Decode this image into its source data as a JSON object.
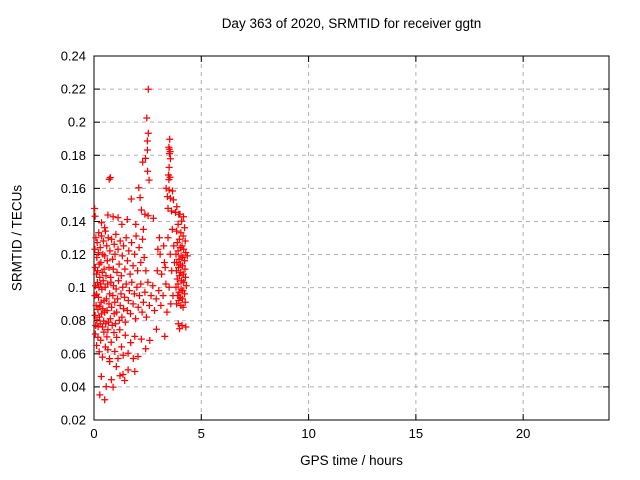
{
  "chart_data": {
    "type": "scatter",
    "title": "Day 363 of 2020, SRMTID for receiver ggtn",
    "xlabel": "GPS time / hours",
    "ylabel": "SRMTID / TECUs",
    "xlim": [
      0,
      24
    ],
    "ylim": [
      0.02,
      0.24
    ],
    "xticks": {
      "values": [
        0,
        5,
        10,
        15,
        20
      ],
      "labels": [
        "0",
        "5",
        "10",
        "15",
        "20"
      ]
    },
    "yticks": {
      "values": [
        0.02,
        0.04,
        0.06,
        0.08,
        0.1,
        0.12,
        0.14,
        0.16,
        0.18,
        0.2,
        0.22,
        0.24
      ],
      "labels": [
        "0.02",
        "0.04",
        "0.06",
        "0.08",
        "0.1",
        "0.12",
        "0.14",
        "0.16",
        "0.18",
        "0.2",
        "0.22",
        "0.24"
      ]
    },
    "grid": true,
    "legend": "none",
    "marker": {
      "shape": "plus",
      "size": 7,
      "color": "#ff0000"
    },
    "colors": {
      "marker": "#ff0000",
      "grid": "#b0b0b0",
      "axis": "#000000",
      "background": "#ffffff"
    },
    "series": [
      {
        "name": "SRMTID",
        "points": [
          [
            0.5,
            0.0322
          ],
          [
            0.27,
            0.0352
          ],
          [
            0.57,
            0.0402
          ],
          [
            0.89,
            0.0399
          ],
          [
            0.34,
            0.0463
          ],
          [
            0.81,
            0.0443
          ],
          [
            1.43,
            0.0439
          ],
          [
            1.21,
            0.0468
          ],
          [
            1.59,
            0.0503
          ],
          [
            1.9,
            0.0493
          ],
          [
            1.04,
            0.0523
          ],
          [
            0.73,
            0.0553
          ],
          [
            2.05,
            0.0584
          ],
          [
            1.35,
            0.0475
          ],
          [
            0.06,
            0.072
          ],
          [
            0.12,
            0.065
          ],
          [
            0.18,
            0.07
          ],
          [
            0.24,
            0.0612
          ],
          [
            0.31,
            0.0682
          ],
          [
            0.39,
            0.058
          ],
          [
            0.46,
            0.0731
          ],
          [
            0.53,
            0.0641
          ],
          [
            0.6,
            0.0702
          ],
          [
            0.65,
            0.0624
          ],
          [
            0.65,
            0.0745
          ],
          [
            0.72,
            0.0571
          ],
          [
            0.8,
            0.067
          ],
          [
            0.93,
            0.0729
          ],
          [
            0.97,
            0.0614
          ],
          [
            1.06,
            0.0699
          ],
          [
            1.12,
            0.0572
          ],
          [
            1.2,
            0.0745
          ],
          [
            1.28,
            0.0642
          ],
          [
            1.36,
            0.0591
          ],
          [
            1.46,
            0.0712
          ],
          [
            1.59,
            0.0604
          ],
          [
            1.71,
            0.0668
          ],
          [
            1.83,
            0.0572
          ],
          [
            1.9,
            0.0705
          ],
          [
            2.21,
            0.0689
          ],
          [
            2.41,
            0.0631
          ],
          [
            2.6,
            0.0681
          ],
          [
            2.91,
            0.0749
          ],
          [
            3.3,
            0.0705
          ],
          [
            0.04,
            0.0952
          ],
          [
            0.05,
            0.0832
          ],
          [
            0.07,
            0.1012
          ],
          [
            0.08,
            0.0771
          ],
          [
            0.1,
            0.0892
          ],
          [
            0.12,
            0.096
          ],
          [
            0.14,
            0.0805
          ],
          [
            0.16,
            0.1031
          ],
          [
            0.18,
            0.0868
          ],
          [
            0.19,
            0.0764
          ],
          [
            0.21,
            0.0941
          ],
          [
            0.23,
            0.1002
          ],
          [
            0.25,
            0.0822
          ],
          [
            0.27,
            0.0885
          ],
          [
            0.29,
            0.0782
          ],
          [
            0.31,
            0.1022
          ],
          [
            0.33,
            0.0912
          ],
          [
            0.35,
            0.0841
          ],
          [
            0.37,
            0.099
          ],
          [
            0.39,
            0.0762
          ],
          [
            0.41,
            0.0872
          ],
          [
            0.43,
            0.1042
          ],
          [
            0.45,
            0.0798
          ],
          [
            0.47,
            0.0921
          ],
          [
            0.5,
            0.0851
          ],
          [
            0.52,
            0.1002
          ],
          [
            0.55,
            0.0782
          ],
          [
            0.58,
            0.0932
          ],
          [
            0.61,
            0.0862
          ],
          [
            0.64,
            0.1022
          ],
          [
            0.67,
            0.0792
          ],
          [
            0.7,
            0.0902
          ],
          [
            0.73,
            0.0962
          ],
          [
            0.76,
            0.0812
          ],
          [
            0.79,
            0.1032
          ],
          [
            0.82,
            0.0882
          ],
          [
            0.85,
            0.0772
          ],
          [
            0.88,
            0.0952
          ],
          [
            0.91,
            0.1012
          ],
          [
            0.94,
            0.0842
          ],
          [
            0.97,
            0.0912
          ],
          [
            1.0,
            0.0782
          ],
          [
            1.03,
            0.0992
          ],
          [
            1.06,
            0.0852
          ],
          [
            1.1,
            0.0932
          ],
          [
            1.14,
            0.1042
          ],
          [
            1.18,
            0.0802
          ],
          [
            1.22,
            0.0892
          ],
          [
            1.26,
            0.0962
          ],
          [
            1.3,
            0.0822
          ],
          [
            1.34,
            0.1002
          ],
          [
            1.38,
            0.0872
          ],
          [
            1.42,
            0.0942
          ],
          [
            1.46,
            0.0792
          ],
          [
            1.5,
            0.1022
          ],
          [
            1.55,
            0.0862
          ],
          [
            1.6,
            0.0922
          ],
          [
            1.65,
            0.0982
          ],
          [
            1.7,
            0.0842
          ],
          [
            1.76,
            0.1032
          ],
          [
            1.82,
            0.0902
          ],
          [
            1.88,
            0.0962
          ],
          [
            1.94,
            0.0812
          ],
          [
            2.0,
            0.1002
          ],
          [
            2.06,
            0.0882
          ],
          [
            2.12,
            0.0952
          ],
          [
            2.18,
            0.1022
          ],
          [
            2.24,
            0.0852
          ],
          [
            2.3,
            0.0912
          ],
          [
            2.37,
            0.0972
          ],
          [
            2.44,
            0.0822
          ],
          [
            2.51,
            0.1032
          ],
          [
            2.58,
            0.0892
          ],
          [
            2.66,
            0.0952
          ],
          [
            2.74,
            0.1012
          ],
          [
            2.82,
            0.0862
          ],
          [
            2.9,
            0.0932
          ],
          [
            0.04,
            0.1232
          ],
          [
            0.06,
            0.1122
          ],
          [
            0.09,
            0.1302
          ],
          [
            0.11,
            0.1082
          ],
          [
            0.13,
            0.1182
          ],
          [
            0.15,
            0.1272
          ],
          [
            0.17,
            0.1102
          ],
          [
            0.2,
            0.1212
          ],
          [
            0.22,
            0.1332
          ],
          [
            0.24,
            0.1142
          ],
          [
            0.27,
            0.1062
          ],
          [
            0.29,
            0.1242
          ],
          [
            0.32,
            0.1152
          ],
          [
            0.35,
            0.1312
          ],
          [
            0.38,
            0.1092
          ],
          [
            0.41,
            0.1202
          ],
          [
            0.44,
            0.1282
          ],
          [
            0.47,
            0.1112
          ],
          [
            0.5,
            0.1192
          ],
          [
            0.53,
            0.1342
          ],
          [
            0.56,
            0.1072
          ],
          [
            0.59,
            0.1252
          ],
          [
            0.62,
            0.1162
          ],
          [
            0.66,
            0.1302
          ],
          [
            0.7,
            0.1122
          ],
          [
            0.74,
            0.1222
          ],
          [
            0.78,
            0.1062
          ],
          [
            0.82,
            0.1292
          ],
          [
            0.86,
            0.1172
          ],
          [
            0.9,
            0.1112
          ],
          [
            0.94,
            0.1262
          ],
          [
            0.98,
            0.1202
          ],
          [
            1.02,
            0.1322
          ],
          [
            1.07,
            0.1092
          ],
          [
            1.12,
            0.1232
          ],
          [
            1.17,
            0.1142
          ],
          [
            1.22,
            0.1282
          ],
          [
            1.27,
            0.1072
          ],
          [
            1.32,
            0.1192
          ],
          [
            1.38,
            0.1252
          ],
          [
            1.44,
            0.1112
          ],
          [
            1.5,
            0.1302
          ],
          [
            1.56,
            0.1162
          ],
          [
            1.62,
            0.1222
          ],
          [
            1.68,
            0.1082
          ],
          [
            1.75,
            0.1272
          ],
          [
            1.82,
            0.1132
          ],
          [
            1.89,
            0.1202
          ],
          [
            1.96,
            0.1312
          ],
          [
            2.03,
            0.1102
          ],
          [
            2.1,
            0.1242
          ],
          [
            2.18,
            0.1152
          ],
          [
            2.26,
            0.1292
          ],
          [
            2.34,
            0.1182
          ],
          [
            2.42,
            0.1102
          ],
          [
            0.03,
            0.1478
          ],
          [
            0.05,
            0.1432
          ],
          [
            0.65,
            0.1439
          ],
          [
            0.89,
            0.1429
          ],
          [
            1.12,
            0.1423
          ],
          [
            1.74,
            0.1536
          ],
          [
            2.09,
            0.1604
          ],
          [
            2.15,
            0.1544
          ],
          [
            2.21,
            0.1469
          ],
          [
            2.37,
            0.1443
          ],
          [
            2.52,
            0.1435
          ],
          [
            2.77,
            0.1419
          ],
          [
            0.76,
            0.1665
          ],
          [
            0.71,
            0.1655
          ],
          [
            1.3,
            0.1382
          ],
          [
            1.55,
            0.1412
          ],
          [
            0.35,
            0.1392
          ],
          [
            1.95,
            0.1382
          ],
          [
            2.3,
            0.1352
          ],
          [
            0.5,
            0.1362
          ],
          [
            2.53,
            0.2199
          ],
          [
            2.46,
            0.2025
          ],
          [
            2.53,
            0.1933
          ],
          [
            2.49,
            0.1886
          ],
          [
            2.49,
            0.1832
          ],
          [
            2.27,
            0.1759
          ],
          [
            2.5,
            0.1703
          ],
          [
            2.57,
            0.165
          ],
          [
            2.4,
            0.1781
          ],
          [
            3.53,
            0.1897
          ],
          [
            3.49,
            0.1848
          ],
          [
            3.51,
            0.1836
          ],
          [
            3.55,
            0.1822
          ],
          [
            3.52,
            0.181
          ],
          [
            3.56,
            0.1779
          ],
          [
            3.5,
            0.1727
          ],
          [
            3.47,
            0.1681
          ],
          [
            3.54,
            0.1667
          ],
          [
            3.49,
            0.1653
          ],
          [
            3.42,
            0.155
          ],
          [
            3.56,
            0.154
          ],
          [
            3.66,
            0.1584
          ],
          [
            3.7,
            0.153
          ],
          [
            3.36,
            0.1601
          ],
          [
            3.5,
            0.159
          ],
          [
            3.86,
            0.1489
          ],
          [
            3.61,
            0.1463
          ],
          [
            3.8,
            0.1455
          ],
          [
            3.45,
            0.1479
          ],
          [
            3.95,
            0.1443
          ],
          [
            4.01,
            0.1443
          ],
          [
            4.17,
            0.1429
          ],
          [
            4.08,
            0.1402
          ],
          [
            3.92,
            0.1382
          ],
          [
            4.22,
            0.1362
          ],
          [
            3.85,
            0.1342
          ],
          [
            4.05,
            0.1332
          ],
          [
            4.15,
            0.1312
          ],
          [
            3.98,
            0.1292
          ],
          [
            4.25,
            0.1282
          ],
          [
            3.88,
            0.1272
          ],
          [
            4.1,
            0.1252
          ],
          [
            4.02,
            0.1242
          ],
          [
            4.18,
            0.1232
          ],
          [
            3.92,
            0.1222
          ],
          [
            4.28,
            0.1212
          ],
          [
            3.82,
            0.1202
          ],
          [
            4.06,
            0.1192
          ],
          [
            4.14,
            0.1182
          ],
          [
            3.96,
            0.1172
          ],
          [
            4.22,
            0.1162
          ],
          [
            3.86,
            0.1152
          ],
          [
            4.02,
            0.1142
          ],
          [
            4.12,
            0.1132
          ],
          [
            3.94,
            0.1122
          ],
          [
            4.24,
            0.1112
          ],
          [
            3.84,
            0.1102
          ],
          [
            4.04,
            0.1092
          ],
          [
            4.16,
            0.1082
          ],
          [
            3.98,
            0.1072
          ],
          [
            4.26,
            0.1062
          ],
          [
            3.88,
            0.1052
          ],
          [
            4.08,
            0.1042
          ],
          [
            4.18,
            0.1032
          ],
          [
            3.92,
            0.1022
          ],
          [
            4.3,
            0.1012
          ],
          [
            3.82,
            0.1002
          ],
          [
            4.06,
            0.0992
          ],
          [
            4.14,
            0.0982
          ],
          [
            3.96,
            0.0972
          ],
          [
            4.22,
            0.0962
          ],
          [
            3.9,
            0.0952
          ],
          [
            4.02,
            0.0942
          ],
          [
            4.12,
            0.0932
          ],
          [
            3.95,
            0.0922
          ],
          [
            4.25,
            0.0912
          ],
          [
            3.85,
            0.0902
          ],
          [
            4.05,
            0.0892
          ],
          [
            4.15,
            0.0882
          ],
          [
            3.93,
            0.0782
          ],
          [
            4.1,
            0.0772
          ],
          [
            4.28,
            0.0762
          ],
          [
            3.99,
            0.0752
          ],
          [
            4.35,
            0.1192
          ],
          [
            2.95,
            0.1102
          ],
          [
            3.02,
            0.0982
          ],
          [
            3.08,
            0.1202
          ],
          [
            3.15,
            0.1082
          ],
          [
            3.22,
            0.0952
          ],
          [
            3.28,
            0.1152
          ],
          [
            3.35,
            0.1022
          ],
          [
            3.05,
            0.1302
          ],
          [
            3.12,
            0.0892
          ],
          [
            3.25,
            0.1252
          ],
          [
            3.32,
            0.1122
          ],
          [
            2.98,
            0.1232
          ],
          [
            3.45,
            0.1302
          ],
          [
            3.55,
            0.1202
          ],
          [
            3.62,
            0.1102
          ],
          [
            3.5,
            0.1002
          ],
          [
            3.58,
            0.0902
          ],
          [
            3.4,
            0.0852
          ],
          [
            3.65,
            0.1352
          ],
          [
            3.72,
            0.1252
          ],
          [
            3.68,
            0.0952
          ],
          [
            3.75,
            0.1152
          ]
        ]
      }
    ]
  }
}
